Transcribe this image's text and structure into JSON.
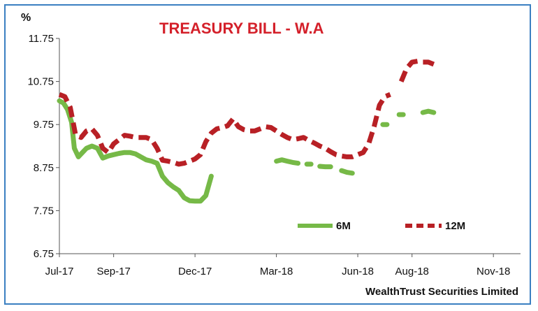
{
  "chart_data": {
    "type": "line",
    "title": "TREASURY BILL - W.A",
    "ylabel": "%",
    "source": "WealthTrust Securities Limited",
    "ylim": [
      6.75,
      11.75
    ],
    "yticks": [
      "6.75",
      "7.75",
      "8.75",
      "9.75",
      "10.75",
      "11.75"
    ],
    "xlim": [
      0,
      17
    ],
    "xticks": [
      {
        "label": "Jul-17",
        "x": 0
      },
      {
        "label": "Sep-17",
        "x": 2
      },
      {
        "label": "Dec-17",
        "x": 5
      },
      {
        "label": "Mar-18",
        "x": 8
      },
      {
        "label": "Jun-18",
        "x": 11
      },
      {
        "label": "Aug-18",
        "x": 13
      },
      {
        "label": "Nov-18",
        "x": 16
      }
    ],
    "colors": {
      "6M": "#76b947",
      "12M": "#b82025",
      "title": "#d4202a",
      "frame": "#3a7fc1"
    },
    "legend": "bottom-right",
    "series": [
      {
        "name": "6M",
        "style": "solid",
        "segments": [
          [
            [
              0,
              10.3
            ],
            [
              0.15,
              10.25
            ],
            [
              0.3,
              10.1
            ],
            [
              0.45,
              9.8
            ],
            [
              0.55,
              9.2
            ],
            [
              0.7,
              9.0
            ],
            [
              0.85,
              9.1
            ],
            [
              1.0,
              9.2
            ],
            [
              1.2,
              9.25
            ],
            [
              1.4,
              9.2
            ],
            [
              1.6,
              8.97
            ],
            [
              1.8,
              9.02
            ],
            [
              2.0,
              9.05
            ],
            [
              2.2,
              9.08
            ],
            [
              2.4,
              9.1
            ],
            [
              2.6,
              9.1
            ],
            [
              2.8,
              9.07
            ],
            [
              3.0,
              9.0
            ],
            [
              3.2,
              8.93
            ],
            [
              3.4,
              8.9
            ],
            [
              3.6,
              8.85
            ],
            [
              3.8,
              8.55
            ],
            [
              4.0,
              8.4
            ],
            [
              4.2,
              8.3
            ],
            [
              4.4,
              8.22
            ],
            [
              4.6,
              8.05
            ],
            [
              4.8,
              7.98
            ],
            [
              5.0,
              7.97
            ],
            [
              5.2,
              7.97
            ],
            [
              5.4,
              8.1
            ],
            [
              5.6,
              8.55
            ]
          ],
          [
            [
              8.0,
              8.9
            ],
            [
              8.2,
              8.93
            ],
            [
              8.4,
              8.9
            ],
            [
              8.6,
              8.87
            ],
            [
              8.8,
              8.85
            ]
          ],
          [
            [
              9.2,
              8.83
            ]
          ],
          [
            [
              9.6,
              8.78
            ],
            [
              9.8,
              8.77
            ],
            [
              10.0,
              8.77
            ]
          ],
          [
            [
              10.4,
              8.68
            ],
            [
              10.6,
              8.64
            ],
            [
              10.8,
              8.62
            ]
          ],
          [
            [
              12.0,
              9.75
            ]
          ],
          [
            [
              12.6,
              9.98
            ]
          ],
          [
            [
              13.4,
              10.03
            ],
            [
              13.6,
              10.06
            ],
            [
              13.8,
              10.03
            ]
          ]
        ]
      },
      {
        "name": "12M",
        "style": "dashed",
        "segments": [
          [
            [
              0,
              10.45
            ],
            [
              0.2,
              10.4
            ],
            [
              0.4,
              10.15
            ],
            [
              0.6,
              9.5
            ],
            [
              0.8,
              9.45
            ],
            [
              1.0,
              9.6
            ],
            [
              1.2,
              9.65
            ],
            [
              1.4,
              9.5
            ],
            [
              1.6,
              9.2
            ],
            [
              1.8,
              9.1
            ],
            [
              2.0,
              9.3
            ],
            [
              2.2,
              9.4
            ],
            [
              2.4,
              9.5
            ],
            [
              2.6,
              9.48
            ],
            [
              2.8,
              9.45
            ],
            [
              3.0,
              9.45
            ],
            [
              3.2,
              9.45
            ],
            [
              3.4,
              9.4
            ],
            [
              3.6,
              9.2
            ],
            [
              3.8,
              8.92
            ],
            [
              4.0,
              8.9
            ],
            [
              4.2,
              8.87
            ],
            [
              4.4,
              8.83
            ],
            [
              4.6,
              8.85
            ],
            [
              4.8,
              8.9
            ],
            [
              5.0,
              8.95
            ],
            [
              5.2,
              9.05
            ],
            [
              5.4,
              9.35
            ],
            [
              5.6,
              9.55
            ],
            [
              5.8,
              9.65
            ],
            [
              6.0,
              9.68
            ],
            [
              6.2,
              9.72
            ],
            [
              6.4,
              9.88
            ],
            [
              6.6,
              9.7
            ],
            [
              6.8,
              9.63
            ],
            [
              7.0,
              9.6
            ],
            [
              7.2,
              9.6
            ],
            [
              7.4,
              9.65
            ],
            [
              7.6,
              9.7
            ],
            [
              7.8,
              9.68
            ],
            [
              8.0,
              9.6
            ],
            [
              8.2,
              9.52
            ],
            [
              8.4,
              9.45
            ],
            [
              8.6,
              9.4
            ],
            [
              8.8,
              9.42
            ],
            [
              9.0,
              9.45
            ],
            [
              9.2,
              9.38
            ],
            [
              9.4,
              9.32
            ],
            [
              9.6,
              9.25
            ],
            [
              9.8,
              9.2
            ],
            [
              10.0,
              9.12
            ],
            [
              10.2,
              9.05
            ],
            [
              10.4,
              9.02
            ],
            [
              10.6,
              9.0
            ],
            [
              10.8,
              9.0
            ],
            [
              11.0,
              9.05
            ],
            [
              11.2,
              9.1
            ],
            [
              11.4,
              9.3
            ],
            [
              11.6,
              9.7
            ],
            [
              11.8,
              10.2
            ],
            [
              12.0,
              10.4
            ],
            [
              12.2,
              10.45
            ]
          ],
          [
            [
              12.6,
              10.75
            ],
            [
              12.8,
              11.05
            ],
            [
              13.0,
              11.2
            ],
            [
              13.2,
              11.22
            ],
            [
              13.4,
              11.2
            ],
            [
              13.6,
              11.2
            ],
            [
              13.8,
              11.15
            ]
          ]
        ]
      }
    ]
  }
}
